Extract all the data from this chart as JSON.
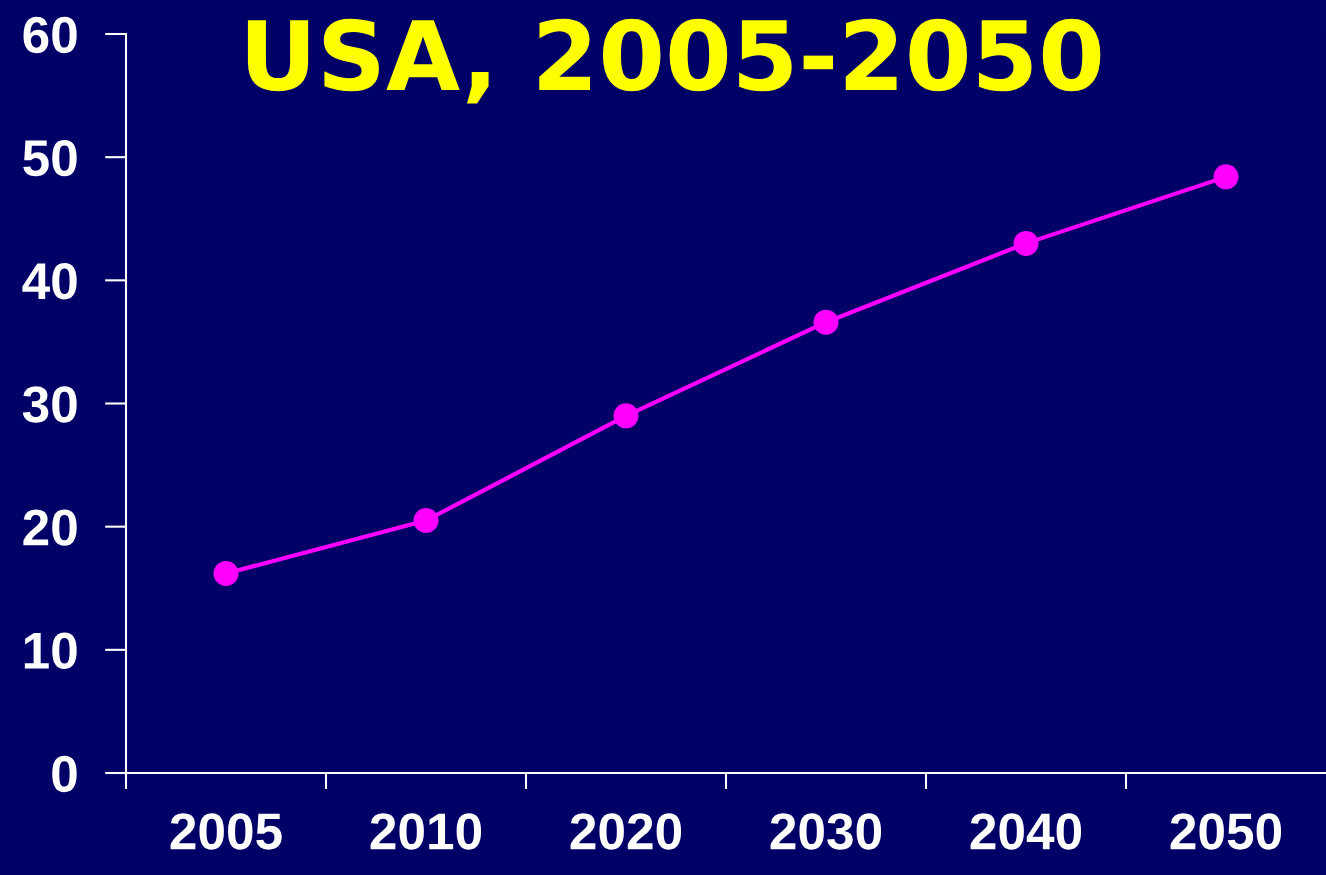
{
  "chart_data": {
    "type": "line",
    "title": "USA, 2005-2050",
    "categories": [
      "2005",
      "2010",
      "2020",
      "2030",
      "2040",
      "2050"
    ],
    "series": [
      {
        "color": "#ff00ff",
        "values": [
          16.2,
          20.5,
          29.0,
          36.6,
          43.0,
          48.4
        ]
      }
    ],
    "ylim": [
      0,
      60
    ],
    "yticks": [
      0,
      10,
      20,
      30,
      40,
      50,
      60
    ],
    "grid": false,
    "marker": "circle",
    "line_style": "solid"
  }
}
